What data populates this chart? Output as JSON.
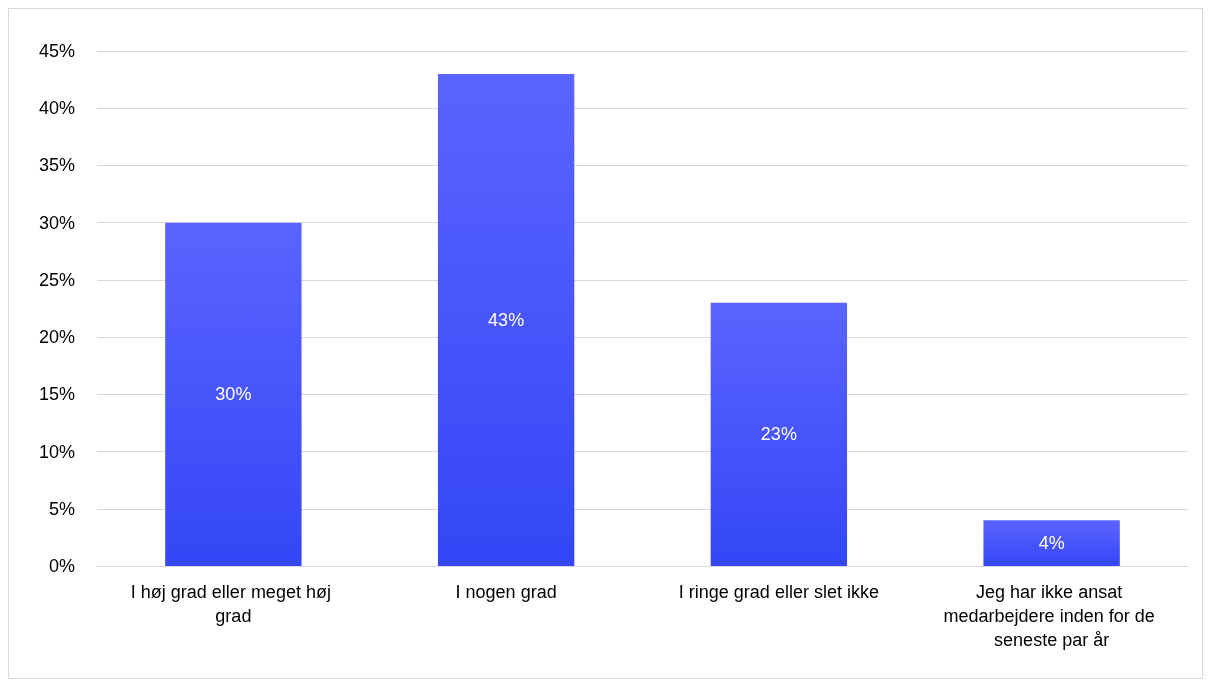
{
  "chart_data": {
    "type": "bar",
    "categories": [
      "I høj grad eller meget høj grad",
      "I nogen grad",
      "I ringe grad eller slet ikke",
      "Jeg har ikke ansat medarbejdere inden for de seneste par år"
    ],
    "values": [
      30,
      43,
      23,
      4
    ],
    "color": "#3446f6",
    "data_labels": true,
    "value_labels": [
      "30%",
      "43%",
      "23%",
      "4%"
    ],
    "ylim": [
      0,
      45
    ],
    "yticks": [
      {
        "value": 0,
        "label": "0%"
      },
      {
        "value": 5,
        "label": "5%"
      },
      {
        "value": 10,
        "label": "10%"
      },
      {
        "value": 15,
        "label": "15%"
      },
      {
        "value": 20,
        "label": "20%"
      },
      {
        "value": 25,
        "label": "25%"
      },
      {
        "value": 30,
        "label": "30%"
      },
      {
        "value": 35,
        "label": "35%"
      },
      {
        "value": 40,
        "label": "40%"
      },
      {
        "value": 45,
        "label": "45%"
      }
    ],
    "grid": "y"
  }
}
